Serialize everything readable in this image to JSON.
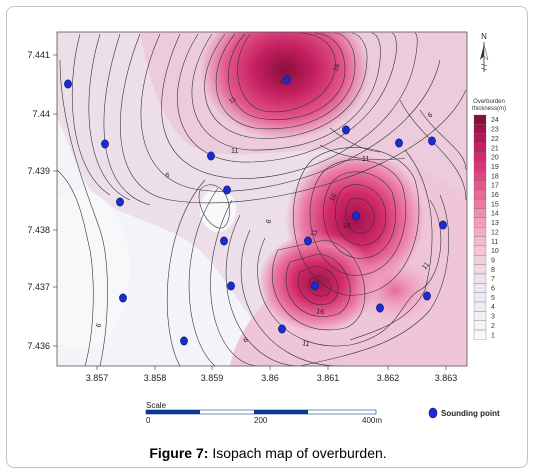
{
  "figure": {
    "caption_label": "Figure 7:",
    "caption_text": " Isopach map of overburden."
  },
  "axes": {
    "y_ticks": [
      "7.441",
      "7.44",
      "7.439",
      "7.438",
      "7.437",
      "7.436"
    ],
    "x_ticks": [
      "3.857",
      "3.858",
      "3.859",
      "3.86",
      "3.861",
      "3.862",
      "3.863"
    ]
  },
  "north_arrow": {
    "label": "N"
  },
  "legend": {
    "title_line1": "Overburden",
    "title_line2": "thickness(m)",
    "levels": [
      "24",
      "23",
      "22",
      "21",
      "20",
      "19",
      "18",
      "17",
      "16",
      "15",
      "14",
      "13",
      "12",
      "11",
      "10",
      "9",
      "8",
      "7",
      "6",
      "5",
      "4",
      "3",
      "2",
      "1"
    ],
    "colors": [
      "#8a0f3c",
      "#a0124a",
      "#b51856",
      "#c51f60",
      "#d32a6a",
      "#da3675",
      "#df4681",
      "#e4588c",
      "#e86a99",
      "#ec7ca6",
      "#ef8db2",
      "#f19dbd",
      "#f3acc7",
      "#f3b9cf",
      "#f3c4d7",
      "#f2cfdf",
      "#f0d9e6",
      "#eee1ec",
      "#ece7f0",
      "#ebeaf2",
      "#ececf3",
      "#efeff5",
      "#f3f3f8",
      "#f8f8fb"
    ]
  },
  "scale": {
    "title": "Scale",
    "labels": [
      "0",
      "200",
      "400m"
    ]
  },
  "sounding_legend": {
    "label": "Sounding point"
  },
  "contour_labels": [
    "16",
    "16",
    "11",
    "11",
    "6",
    "6",
    "11",
    "6",
    "11",
    "16",
    "16",
    "11",
    "6",
    "6",
    "16",
    "11"
  ],
  "sounding_points_count": 20
}
